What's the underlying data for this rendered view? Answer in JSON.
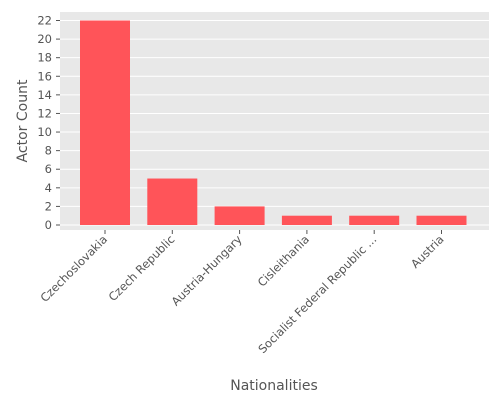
{
  "chart_data": {
    "type": "bar",
    "title": "",
    "xlabel": "Nationalities",
    "ylabel": "Actor Count",
    "categories": [
      "Czechoslovakia",
      "Czech Republic",
      "Austria-Hungary",
      "Cisleithania",
      "Socialist Federal Republic ...",
      "Austria"
    ],
    "values": [
      22,
      5,
      2,
      1,
      1,
      1
    ],
    "ylim": [
      0,
      23
    ],
    "yticks": [
      0,
      2,
      4,
      6,
      8,
      10,
      12,
      14,
      16,
      18,
      20,
      22
    ],
    "grid": true,
    "bar_color": "#ff5459",
    "plot_background": "#e8e8e8",
    "grid_color": "#ffffff",
    "text_color": "#555555"
  }
}
